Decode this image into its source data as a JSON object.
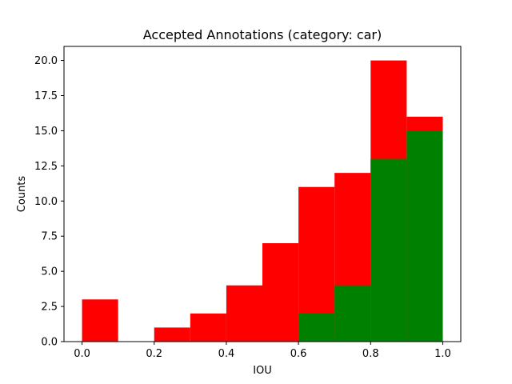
{
  "chart_data": {
    "type": "bar",
    "title": "Accepted Annotations (category: car)",
    "xlabel": "IOU",
    "ylabel": "Counts",
    "xlim": [
      -0.05,
      1.05
    ],
    "ylim": [
      0,
      21
    ],
    "x_ticks": [
      0.0,
      0.2,
      0.4,
      0.6,
      0.8,
      1.0
    ],
    "x_tick_labels": [
      "0.0",
      "0.2",
      "0.4",
      "0.6",
      "0.8",
      "1.0"
    ],
    "y_ticks": [
      0.0,
      2.5,
      5.0,
      7.5,
      10.0,
      12.5,
      15.0,
      17.5,
      20.0
    ],
    "y_tick_labels": [
      "0.0",
      "2.5",
      "5.0",
      "7.5",
      "10.0",
      "12.5",
      "15.0",
      "17.5",
      "20.0"
    ],
    "bin_edges": [
      0.0,
      0.1,
      0.2,
      0.3,
      0.4,
      0.5,
      0.6,
      0.7,
      0.8,
      0.9,
      1.0
    ],
    "series": [
      {
        "color": "#ff0000",
        "values": [
          3,
          0,
          1,
          2,
          4,
          7,
          11,
          12,
          20,
          16
        ]
      },
      {
        "color": "#008000",
        "values": [
          0,
          0,
          0,
          0,
          0,
          0,
          2,
          4,
          13,
          15
        ]
      }
    ],
    "grid": false
  }
}
